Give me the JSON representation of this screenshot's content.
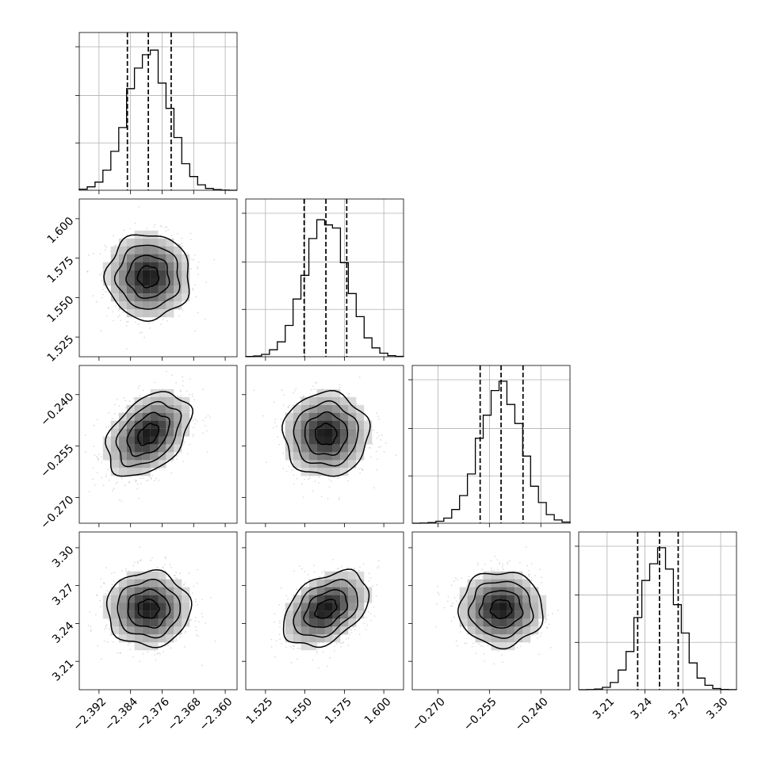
{
  "chart_data": {
    "type": "corner",
    "n_parameters": 4,
    "grid": true,
    "colors": {
      "points": "#9a9a9a",
      "lines": "#000000"
    },
    "parameters": [
      {
        "index": 0,
        "range": [
          -2.397,
          -2.357
        ],
        "ticks": [
          "-2.392",
          "-2.384",
          "-2.376",
          "-2.368",
          "-2.360"
        ],
        "tick_values": [
          -2.392,
          -2.384,
          -2.376,
          -2.368,
          -2.36
        ],
        "mean": -2.3795,
        "std": 0.0053,
        "quantiles": [
          -2.3848,
          -2.3795,
          -2.3737
        ]
      },
      {
        "index": 1,
        "range": [
          1.5125,
          1.6125
        ],
        "ticks": [
          "1.525",
          "1.550",
          "1.575",
          "1.600"
        ],
        "tick_values": [
          1.525,
          1.55,
          1.575,
          1.6
        ],
        "mean": 1.5633,
        "std": 0.0135,
        "quantiles": [
          1.5495,
          1.5633,
          1.5765
        ]
      },
      {
        "index": 2,
        "range": [
          -0.2775,
          -0.2315
        ],
        "ticks": [
          "-0.270",
          "-0.255",
          "-0.240"
        ],
        "tick_values": [
          -0.27,
          -0.255,
          -0.24
        ],
        "mean": -0.2516,
        "std": 0.0061,
        "quantiles": [
          -0.2577,
          -0.2516,
          -0.2452
        ]
      },
      {
        "index": 3,
        "range": [
          3.1875,
          3.3125
        ],
        "ticks": [
          "3.21",
          "3.24",
          "3.27",
          "3.30"
        ],
        "tick_values": [
          3.21,
          3.24,
          3.27,
          3.3
        ],
        "mean": 3.2515,
        "std": 0.0148,
        "quantiles": [
          3.2342,
          3.2515,
          3.2663
        ]
      }
    ],
    "correlations": [
      {
        "pair": [
          1,
          0
        ],
        "rho": 0.0
      },
      {
        "pair": [
          2,
          0
        ],
        "rho": 0.4
      },
      {
        "pair": [
          2,
          1
        ],
        "rho": 0.0
      },
      {
        "pair": [
          3,
          0
        ],
        "rho": 0.0
      },
      {
        "pair": [
          3,
          1
        ],
        "rho": 0.4
      },
      {
        "pair": [
          3,
          2
        ],
        "rho": 0.0
      }
    ]
  }
}
